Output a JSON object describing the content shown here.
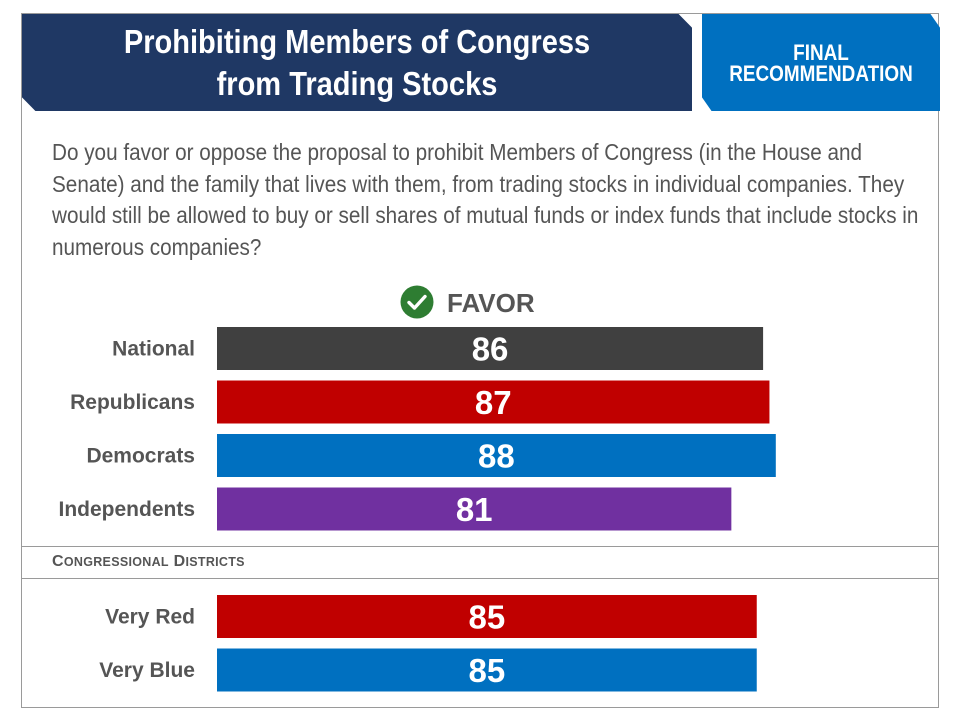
{
  "title": "Prohibiting Members of Congress\nfrom Trading Stocks",
  "badge": "FINAL\nRECOMMENDATION",
  "question": "Do you favor or oppose the proposal to prohibit Members of Congress (in the House and Senate) and the family that lives with them, from trading stocks in individual companies. They would still be allowed to buy or sell shares of mutual funds or index funds that include stocks in numerous companies?",
  "favor_label": "FAVOR",
  "section_label": "Congressional Districts",
  "icons": {
    "favor": "check-circle-icon"
  },
  "colors": {
    "title": "#1f3864",
    "badge": "#0070c0",
    "check": "#2e7d32"
  },
  "chart_data": [
    {
      "type": "bar",
      "orientation": "horizontal",
      "categories": [
        "National",
        "Republicans",
        "Democrats",
        "Independents"
      ],
      "values": [
        86,
        87,
        88,
        81
      ],
      "colors": [
        "#404040",
        "#c00000",
        "#0070c0",
        "#7030a0"
      ],
      "xlim": [
        0,
        100
      ]
    },
    {
      "type": "bar",
      "orientation": "horizontal",
      "title": "Congressional Districts",
      "categories": [
        "Very Red",
        "Very Blue"
      ],
      "values": [
        85,
        85
      ],
      "colors": [
        "#c00000",
        "#0070c0"
      ],
      "xlim": [
        0,
        100
      ]
    }
  ]
}
